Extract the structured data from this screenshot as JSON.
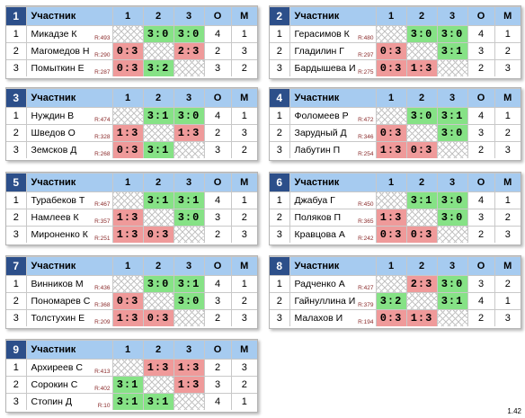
{
  "header": {
    "participant": "Участник",
    "c1": "1",
    "c2": "2",
    "c3": "3",
    "points": "О",
    "place": "М"
  },
  "version": "1.42",
  "groups": [
    {
      "num": "1",
      "players": [
        {
          "n": "1",
          "name": "Микадзе К",
          "rating": "R:493",
          "r": [
            "",
            "3:0",
            "3:0"
          ],
          "pts": "4",
          "place": "1"
        },
        {
          "n": "2",
          "name": "Магомедов Н",
          "rating": "R:290",
          "r": [
            "0:3",
            "",
            "2:3"
          ],
          "pts": "2",
          "place": "3"
        },
        {
          "n": "3",
          "name": "Помыткин Е",
          "rating": "R:287",
          "r": [
            "0:3",
            "3:2",
            ""
          ],
          "pts": "3",
          "place": "2"
        }
      ]
    },
    {
      "num": "2",
      "players": [
        {
          "n": "1",
          "name": "Герасимов К",
          "rating": "R:480",
          "r": [
            "",
            "3:0",
            "3:0"
          ],
          "pts": "4",
          "place": "1"
        },
        {
          "n": "2",
          "name": "Гладилин Г",
          "rating": "R:297",
          "r": [
            "0:3",
            "",
            "3:1"
          ],
          "pts": "3",
          "place": "2"
        },
        {
          "n": "3",
          "name": "Бардышева И",
          "rating": "R:275",
          "r": [
            "0:3",
            "1:3",
            ""
          ],
          "pts": "2",
          "place": "3"
        }
      ]
    },
    {
      "num": "3",
      "players": [
        {
          "n": "1",
          "name": "Нуждин В",
          "rating": "R:474",
          "r": [
            "",
            "3:1",
            "3:0"
          ],
          "pts": "4",
          "place": "1"
        },
        {
          "n": "2",
          "name": "Шведов О",
          "rating": "R:328",
          "r": [
            "1:3",
            "",
            "1:3"
          ],
          "pts": "2",
          "place": "3"
        },
        {
          "n": "3",
          "name": "Земсков Д",
          "rating": "R:268",
          "r": [
            "0:3",
            "3:1",
            ""
          ],
          "pts": "3",
          "place": "2"
        }
      ]
    },
    {
      "num": "4",
      "players": [
        {
          "n": "1",
          "name": "Фоломеев Р",
          "rating": "R:472",
          "r": [
            "",
            "3:0",
            "3:1"
          ],
          "pts": "4",
          "place": "1"
        },
        {
          "n": "2",
          "name": "Зарудный Д",
          "rating": "R:346",
          "r": [
            "0:3",
            "",
            "3:0"
          ],
          "pts": "3",
          "place": "2"
        },
        {
          "n": "3",
          "name": "Лабутин П",
          "rating": "R:254",
          "r": [
            "1:3",
            "0:3",
            ""
          ],
          "pts": "2",
          "place": "3"
        }
      ]
    },
    {
      "num": "5",
      "players": [
        {
          "n": "1",
          "name": "Турабеков Т",
          "rating": "R:467",
          "r": [
            "",
            "3:1",
            "3:1"
          ],
          "pts": "4",
          "place": "1"
        },
        {
          "n": "2",
          "name": "Намлеев К",
          "rating": "R:357",
          "r": [
            "1:3",
            "",
            "3:0"
          ],
          "pts": "3",
          "place": "2"
        },
        {
          "n": "3",
          "name": "Мироненко К",
          "rating": "R:251",
          "r": [
            "1:3",
            "0:3",
            ""
          ],
          "pts": "2",
          "place": "3"
        }
      ]
    },
    {
      "num": "6",
      "players": [
        {
          "n": "1",
          "name": "Джабуа Г",
          "rating": "R:450",
          "r": [
            "",
            "3:1",
            "3:0"
          ],
          "pts": "4",
          "place": "1"
        },
        {
          "n": "2",
          "name": "Поляков П",
          "rating": "R:365",
          "r": [
            "1:3",
            "",
            "3:0"
          ],
          "pts": "3",
          "place": "2"
        },
        {
          "n": "3",
          "name": "Кравцова А",
          "rating": "R:242",
          "r": [
            "0:3",
            "0:3",
            ""
          ],
          "pts": "2",
          "place": "3"
        }
      ]
    },
    {
      "num": "7",
      "players": [
        {
          "n": "1",
          "name": "Винников М",
          "rating": "R:436",
          "r": [
            "",
            "3:0",
            "3:1"
          ],
          "pts": "4",
          "place": "1"
        },
        {
          "n": "2",
          "name": "Пономарев С",
          "rating": "R:368",
          "r": [
            "0:3",
            "",
            "3:0"
          ],
          "pts": "3",
          "place": "2"
        },
        {
          "n": "3",
          "name": "Толстухин Е",
          "rating": "R:209",
          "r": [
            "1:3",
            "0:3",
            ""
          ],
          "pts": "2",
          "place": "3"
        }
      ]
    },
    {
      "num": "8",
      "players": [
        {
          "n": "1",
          "name": "Радченко А",
          "rating": "R:427",
          "r": [
            "",
            "2:3",
            "3:0"
          ],
          "pts": "3",
          "place": "2"
        },
        {
          "n": "2",
          "name": "Гайнуллина И",
          "rating": "R:379",
          "r": [
            "3:2",
            "",
            "3:1"
          ],
          "pts": "4",
          "place": "1"
        },
        {
          "n": "3",
          "name": "Малахов И",
          "rating": "R:194",
          "r": [
            "0:3",
            "1:3",
            ""
          ],
          "pts": "2",
          "place": "3"
        }
      ]
    },
    {
      "num": "9",
      "players": [
        {
          "n": "1",
          "name": "Архиреев С",
          "rating": "R:413",
          "r": [
            "",
            "1:3",
            "1:3"
          ],
          "pts": "2",
          "place": "3"
        },
        {
          "n": "2",
          "name": "Сорокин С",
          "rating": "R:402",
          "r": [
            "3:1",
            "",
            "1:3"
          ],
          "pts": "3",
          "place": "2"
        },
        {
          "n": "3",
          "name": "Стопин Д",
          "rating": "R:10",
          "r": [
            "3:1",
            "3:1",
            ""
          ],
          "pts": "4",
          "place": "1"
        }
      ]
    }
  ]
}
